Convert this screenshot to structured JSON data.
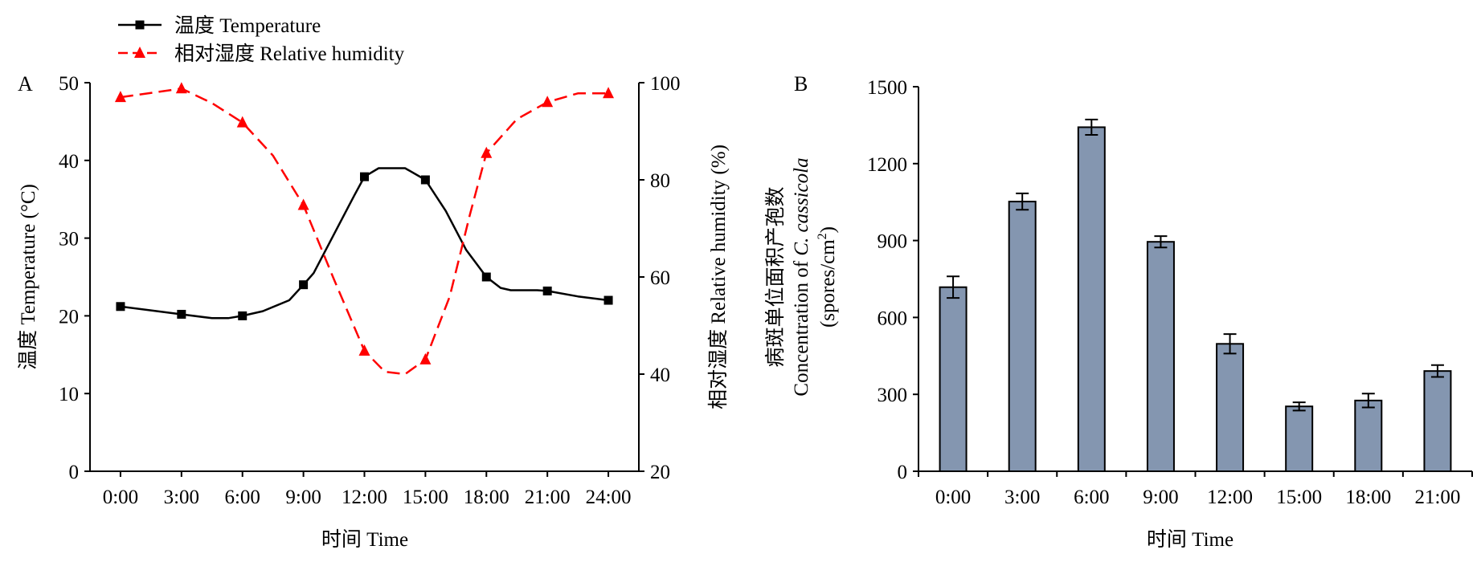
{
  "legend": {
    "temperature": "温度 Temperature",
    "humidity": "相对湿度 Relative humidity"
  },
  "colors": {
    "temperature": "#000000",
    "humidity": "#ff0000",
    "bar_fill": "#8496b0",
    "axis": "#000000"
  },
  "chart_data": [
    {
      "panel": "A",
      "type": "line",
      "xlabel": "时间 Time",
      "ylabel_left": "温度 Temperature (°C)",
      "ylabel_right": "相对湿度 Relative humidity (%)",
      "x_ticks": [
        "0:00",
        "3:00",
        "6:00",
        "9:00",
        "12:00",
        "15:00",
        "18:00",
        "21:00",
        "24:00"
      ],
      "x_range": [
        -1.5,
        25.5
      ],
      "ylim_left": [
        0,
        50
      ],
      "yticks_left": [
        0,
        10,
        20,
        30,
        40,
        50
      ],
      "ylim_right": [
        20,
        100
      ],
      "yticks_right": [
        20,
        40,
        60,
        80,
        100
      ],
      "series": [
        {
          "name": "温度 Temperature",
          "axis": "left",
          "marker": "square",
          "line": "solid",
          "points": [
            [
              0,
              21.2
            ],
            [
              3,
              20.2
            ],
            [
              6,
              20.0
            ],
            [
              9,
              24.0
            ],
            [
              12,
              37.9
            ],
            [
              15,
              37.5
            ],
            [
              18,
              25.0
            ],
            [
              21,
              23.2
            ],
            [
              24,
              22.0
            ]
          ],
          "curve": [
            [
              0,
              21.2
            ],
            [
              1.5,
              20.7
            ],
            [
              3,
              20.2
            ],
            [
              4.5,
              19.7
            ],
            [
              5.3,
              19.7
            ],
            [
              6,
              20.0
            ],
            [
              7,
              20.6
            ],
            [
              8.3,
              22.0
            ],
            [
              9,
              24.0
            ],
            [
              9.5,
              25.5
            ],
            [
              10.5,
              30.5
            ],
            [
              11.5,
              35.5
            ],
            [
              12,
              37.9
            ],
            [
              12.7,
              39.0
            ],
            [
              14,
              39.0
            ],
            [
              15,
              37.5
            ],
            [
              16,
              33.5
            ],
            [
              17,
              28.5
            ],
            [
              18,
              25.0
            ],
            [
              18.7,
              23.6
            ],
            [
              19.2,
              23.3
            ],
            [
              20.5,
              23.3
            ],
            [
              21,
              23.2
            ],
            [
              22.5,
              22.5
            ],
            [
              24,
              22.0
            ]
          ]
        },
        {
          "name": "相对湿度 Relative humidity",
          "axis": "right",
          "marker": "triangle",
          "line": "dashed",
          "points": [
            [
              0,
              97.0
            ],
            [
              3,
              98.8
            ],
            [
              6,
              91.8
            ],
            [
              9,
              74.8
            ],
            [
              12,
              44.8
            ],
            [
              15,
              43.0
            ],
            [
              18,
              85.5
            ],
            [
              21,
              96.0
            ],
            [
              24,
              97.8
            ]
          ],
          "curve": [
            [
              0,
              97.0
            ],
            [
              1.5,
              97.9
            ],
            [
              3,
              98.8
            ],
            [
              4.5,
              95.8
            ],
            [
              6,
              91.8
            ],
            [
              7.5,
              85.0
            ],
            [
              9,
              74.8
            ],
            [
              10.5,
              59.5
            ],
            [
              12,
              44.8
            ],
            [
              13,
              40.5
            ],
            [
              14,
              40.0
            ],
            [
              15,
              43.0
            ],
            [
              16.2,
              56.0
            ],
            [
              17.2,
              73.0
            ],
            [
              18,
              85.5
            ],
            [
              19.5,
              92.5
            ],
            [
              21,
              96.0
            ],
            [
              22.5,
              97.8
            ],
            [
              24,
              97.8
            ]
          ]
        }
      ]
    },
    {
      "panel": "B",
      "type": "bar",
      "xlabel": "时间 Time",
      "ylabel_line1": "病斑单位面积产孢数",
      "ylabel_line2_prefix": "Concentration of ",
      "ylabel_line2_italic": "C. cassicola",
      "ylabel_line3_main": "(spores/cm",
      "ylabel_line3_sup": "2",
      "ylabel_line3_end": ")",
      "categories": [
        "0:00",
        "3:00",
        "6:00",
        "9:00",
        "12:00",
        "15:00",
        "18:00",
        "21:00"
      ],
      "values": [
        718,
        1052,
        1342,
        895,
        497,
        253,
        276,
        391
      ],
      "errors": [
        42,
        32,
        30,
        22,
        38,
        16,
        27,
        23
      ],
      "ylim": [
        0,
        1500
      ],
      "yticks": [
        0,
        300,
        600,
        900,
        1200,
        1500
      ]
    }
  ]
}
